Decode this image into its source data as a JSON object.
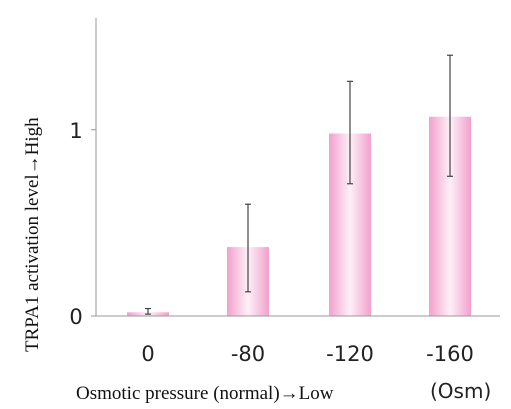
{
  "chart_data": {
    "type": "bar",
    "title": "",
    "xlabel": "Osmotic pressure (normal)→Low",
    "ylabel": "TRPA1 activation level→High",
    "x_unit": "(Osm)",
    "categories": [
      "0",
      "-80",
      "-120",
      "-160"
    ],
    "values": [
      0.02,
      0.37,
      0.98,
      1.07
    ],
    "error_low": [
      0.01,
      0.13,
      0.71,
      0.75
    ],
    "error_high": [
      0.04,
      0.6,
      1.26,
      1.4
    ],
    "ylim": [
      0,
      1.6
    ],
    "yticks": [
      {
        "value": 0,
        "label": "0"
      },
      {
        "value": 1,
        "label": "1"
      }
    ],
    "grid": false,
    "legend": "none",
    "colors": {
      "bar_edge": "#f2a0cc",
      "bar_center": "#fdf0f7",
      "axis": "#999999",
      "error_bar": "#444444"
    }
  }
}
